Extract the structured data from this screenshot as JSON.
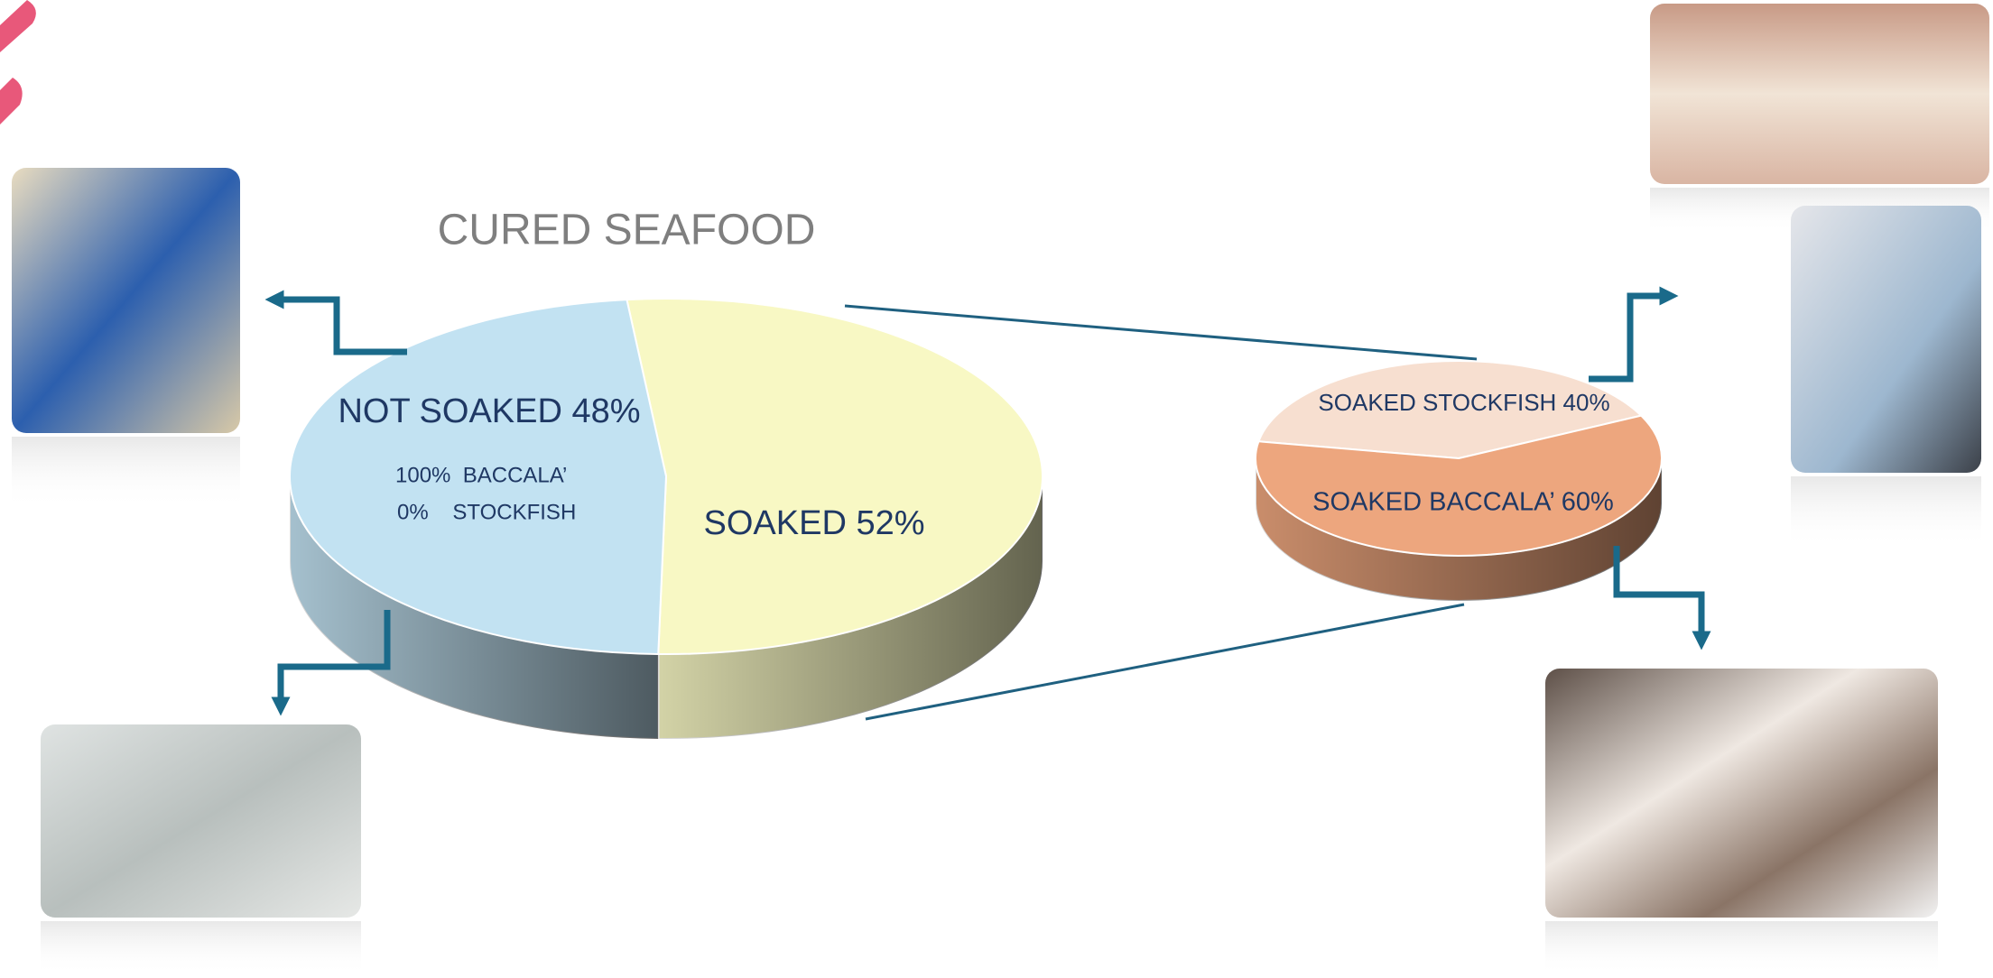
{
  "chart_data": [
    {
      "type": "pie",
      "title": "CURED SEAFOOD",
      "values": [
        52,
        48
      ],
      "value_labels": [
        "SOAKED 52%",
        "NOT SOAKED 48%"
      ],
      "colors": [
        "#f8f8c4",
        "#c2e2f2"
      ],
      "annotations": [
        "100%  BACCALA’",
        "0%    STOCKFISH"
      ]
    },
    {
      "type": "pie",
      "values": [
        40,
        60
      ],
      "value_labels": [
        "SOAKED STOCKFISH 40%",
        "SOAKED BACCALA’ 60%"
      ],
      "colors": [
        "#f7dfd0",
        "#eda67e"
      ]
    }
  ]
}
